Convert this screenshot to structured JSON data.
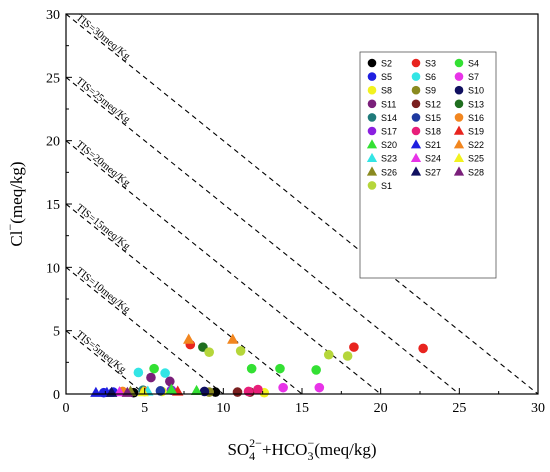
{
  "chart_data": {
    "type": "scatter",
    "xlabel_parts": [
      "SO",
      "4",
      "2−",
      "+HCO",
      "3",
      "−",
      "(meq/kg)"
    ],
    "ylabel_parts": [
      "Cl",
      "−",
      "(meq/kg)"
    ],
    "xlim": [
      0,
      30
    ],
    "ylim": [
      0,
      30
    ],
    "xticks": [
      0,
      5,
      10,
      15,
      20,
      25,
      30
    ],
    "yticks": [
      0,
      5,
      10,
      15,
      20,
      25,
      30
    ],
    "grid": false,
    "legend_position": "top-right",
    "tds_lines": [
      {
        "total": 30,
        "label": "TIS=30meq/Kg"
      },
      {
        "total": 25,
        "label": "TIS=25meq/Kg"
      },
      {
        "total": 20,
        "label": "TIS=20meq/Kg"
      },
      {
        "total": 15,
        "label": "TIS=15meq/Kg"
      },
      {
        "total": 10,
        "label": "TIS=10meq/Kg"
      },
      {
        "total": 5,
        "label": "TIS=5meq/Kg"
      }
    ],
    "series": [
      {
        "name": "S2",
        "marker": "circle",
        "color": "#000000",
        "points": [
          [
            4.3,
            0.1
          ],
          [
            9.5,
            0.15
          ]
        ]
      },
      {
        "name": "S3",
        "marker": "circle",
        "color": "#e8241f",
        "points": [
          [
            7.9,
            3.9
          ],
          [
            18.3,
            3.7
          ],
          [
            22.7,
            3.6
          ]
        ]
      },
      {
        "name": "S4",
        "marker": "circle",
        "color": "#33e033",
        "points": [
          [
            5.6,
            2.0
          ],
          [
            11.8,
            2.0
          ],
          [
            13.6,
            2.0
          ],
          [
            15.9,
            1.9
          ]
        ]
      },
      {
        "name": "S5",
        "marker": "circle",
        "color": "#1f1fe0",
        "points": [
          [
            2.4,
            0.1
          ],
          [
            3.0,
            0.15
          ]
        ]
      },
      {
        "name": "S6",
        "marker": "circle",
        "color": "#33e5e5",
        "points": [
          [
            4.6,
            1.7
          ],
          [
            6.3,
            1.65
          ]
        ]
      },
      {
        "name": "S7",
        "marker": "circle",
        "color": "#e833e8",
        "points": [
          [
            13.8,
            0.5
          ],
          [
            16.1,
            0.5
          ]
        ]
      },
      {
        "name": "S8",
        "marker": "circle",
        "color": "#f2f21f",
        "points": [
          [
            12.6,
            0.1
          ],
          [
            6.1,
            0.2
          ]
        ]
      },
      {
        "name": "S9",
        "marker": "circle",
        "color": "#8a8a1f",
        "points": [
          [
            9.1,
            0.15
          ]
        ]
      },
      {
        "name": "S10",
        "marker": "circle",
        "color": "#101060",
        "points": [
          [
            8.8,
            0.2
          ]
        ]
      },
      {
        "name": "S11",
        "marker": "circle",
        "color": "#7a1f7a",
        "points": [
          [
            5.4,
            1.3
          ],
          [
            6.6,
            1.0
          ]
        ]
      },
      {
        "name": "S12",
        "marker": "circle",
        "color": "#7a1f1f",
        "points": [
          [
            10.9,
            0.15
          ],
          [
            11.7,
            0.15
          ]
        ]
      },
      {
        "name": "S13",
        "marker": "circle",
        "color": "#1f6e1f",
        "points": [
          [
            8.7,
            3.7
          ]
        ]
      },
      {
        "name": "S14",
        "marker": "circle",
        "color": "#1f7a7a",
        "points": [
          [
            4.9,
            0.3
          ]
        ]
      },
      {
        "name": "S15",
        "marker": "circle",
        "color": "#1f3aa0",
        "points": [
          [
            6.0,
            0.25
          ]
        ]
      },
      {
        "name": "S16",
        "marker": "circle",
        "color": "#f2861f",
        "points": [
          [
            3.6,
            0.2
          ],
          [
            5.0,
            0.2
          ]
        ]
      },
      {
        "name": "S17",
        "marker": "circle",
        "color": "#8a1fe0",
        "points": [
          [
            6.7,
            0.3
          ]
        ]
      },
      {
        "name": "S18",
        "marker": "circle",
        "color": "#e81f7a",
        "points": [
          [
            11.6,
            0.2
          ],
          [
            12.2,
            0.35
          ]
        ]
      },
      {
        "name": "S19",
        "marker": "triangle",
        "color": "#e8241f",
        "points": [
          [
            7.1,
            0.2
          ]
        ]
      },
      {
        "name": "S20",
        "marker": "triangle",
        "color": "#33e033",
        "points": [
          [
            6.7,
            0.35
          ],
          [
            8.3,
            0.25
          ]
        ]
      },
      {
        "name": "S21",
        "marker": "triangle",
        "color": "#1f1fe0",
        "points": [
          [
            1.9,
            0.1
          ],
          [
            2.6,
            0.1
          ]
        ]
      },
      {
        "name": "S22",
        "marker": "triangle",
        "color": "#f2861f",
        "points": [
          [
            7.8,
            4.3
          ],
          [
            10.6,
            4.3
          ]
        ]
      },
      {
        "name": "S23",
        "marker": "triangle",
        "color": "#33e5e5",
        "points": [
          [
            5.2,
            0.2
          ]
        ]
      },
      {
        "name": "S24",
        "marker": "triangle",
        "color": "#e833e8",
        "points": [
          [
            3.4,
            0.15
          ]
        ]
      },
      {
        "name": "S25",
        "marker": "triangle",
        "color": "#f2f21f",
        "points": [
          [
            4.9,
            0.15
          ]
        ]
      },
      {
        "name": "S26",
        "marker": "triangle",
        "color": "#8a8a1f",
        "points": [
          [
            4.1,
            0.2
          ]
        ]
      },
      {
        "name": "S27",
        "marker": "triangle",
        "color": "#101060",
        "points": [
          [
            2.9,
            0.1
          ]
        ]
      },
      {
        "name": "S28",
        "marker": "triangle",
        "color": "#7a1f7a",
        "points": [
          [
            3.9,
            0.1
          ]
        ]
      },
      {
        "name": "S1",
        "marker": "circle",
        "color": "#b5d63a",
        "points": [
          [
            9.1,
            3.3
          ],
          [
            11.1,
            3.4
          ],
          [
            16.7,
            3.1
          ],
          [
            17.9,
            3.0
          ]
        ]
      }
    ]
  }
}
